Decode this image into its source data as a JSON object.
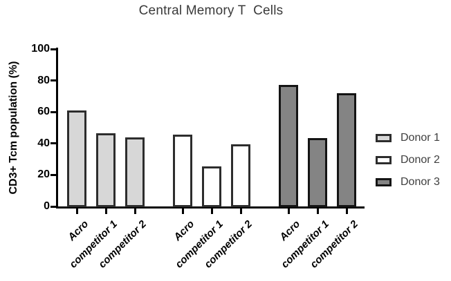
{
  "chart_data": {
    "type": "bar",
    "title": "Central Memory T  Cells",
    "xlabel": "",
    "ylabel": "CD3+ Tcm population (%)",
    "ylim": [
      0,
      100
    ],
    "yticks": [
      0,
      20,
      40,
      60,
      80,
      100
    ],
    "grid": false,
    "legend_position": "right",
    "categories": [
      "Acro",
      "competitor 1",
      "competitor 2"
    ],
    "series": [
      {
        "name": "Donor 1",
        "values": [
          61.5,
          47,
          44.5
        ],
        "fill": "#d7d7d7",
        "border": "#2d2d2d"
      },
      {
        "name": "Donor 2",
        "values": [
          46,
          26,
          40
        ],
        "fill": "#ffffff",
        "border": "#2d2d2d"
      },
      {
        "name": "Donor 3",
        "values": [
          77.5,
          44,
          72.5
        ],
        "fill": "#848484",
        "border": "#141414"
      }
    ],
    "colors": {
      "axis": "#000000",
      "title_text": "#3a3a3a",
      "legend_text": "#3e3e3e",
      "background": "#ffffff"
    }
  }
}
